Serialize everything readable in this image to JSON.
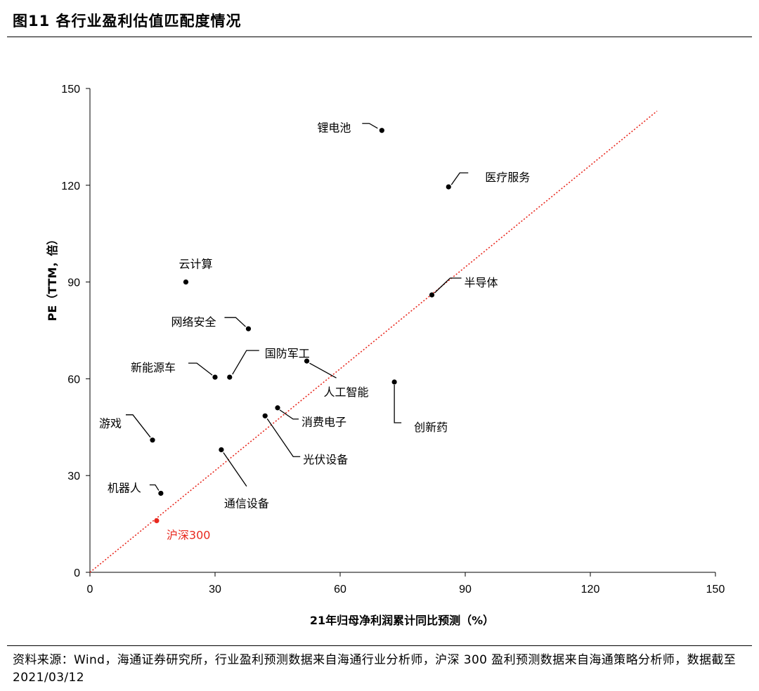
{
  "figure_title": "图11 各行业盈利估值匹配度情况",
  "source_note": "资料来源：Wind，海通证券研究所，行业盈利预测数据来自海通行业分析师，沪深 300 盈利预测数据来自海通策略分析师，数据截至 2021/03/12",
  "chart_data": {
    "type": "scatter",
    "xlabel": "21年归母净利润累计同比预测（%）",
    "ylabel": "PE（TTM，倍）",
    "xlim": [
      0,
      150
    ],
    "ylim": [
      0,
      150
    ],
    "xticks": [
      0,
      30,
      60,
      90,
      120,
      150
    ],
    "yticks": [
      0,
      30,
      60,
      90,
      120,
      150
    ],
    "grid": false,
    "trendline": {
      "style": "dotted",
      "color": "#e8281e",
      "from": [
        0,
        0
      ],
      "to": [
        136,
        143
      ]
    },
    "colors": {
      "point": "#000000",
      "highlight": "#e8281e"
    },
    "points": [
      {
        "label": "锂电池",
        "x": 70,
        "y": 137
      },
      {
        "label": "医疗服务",
        "x": 86,
        "y": 119.5
      },
      {
        "label": "云计算",
        "x": 23,
        "y": 90
      },
      {
        "label": "半导体",
        "x": 82,
        "y": 86
      },
      {
        "label": "网络安全",
        "x": 38,
        "y": 75.5
      },
      {
        "label": "国防军工",
        "x": 33.5,
        "y": 60.5
      },
      {
        "label": "新能源车",
        "x": 30,
        "y": 60.5
      },
      {
        "label": "人工智能",
        "x": 52,
        "y": 65.5
      },
      {
        "label": "创新药",
        "x": 73,
        "y": 59
      },
      {
        "label": "游戏",
        "x": 15,
        "y": 41
      },
      {
        "label": "消费电子",
        "x": 45,
        "y": 51
      },
      {
        "label": "光伏设备",
        "x": 42,
        "y": 48.5
      },
      {
        "label": "通信设备",
        "x": 31.5,
        "y": 38
      },
      {
        "label": "机器人",
        "x": 17,
        "y": 24.5
      },
      {
        "label": "沪深300",
        "x": 16,
        "y": 16,
        "highlight": true
      }
    ]
  }
}
